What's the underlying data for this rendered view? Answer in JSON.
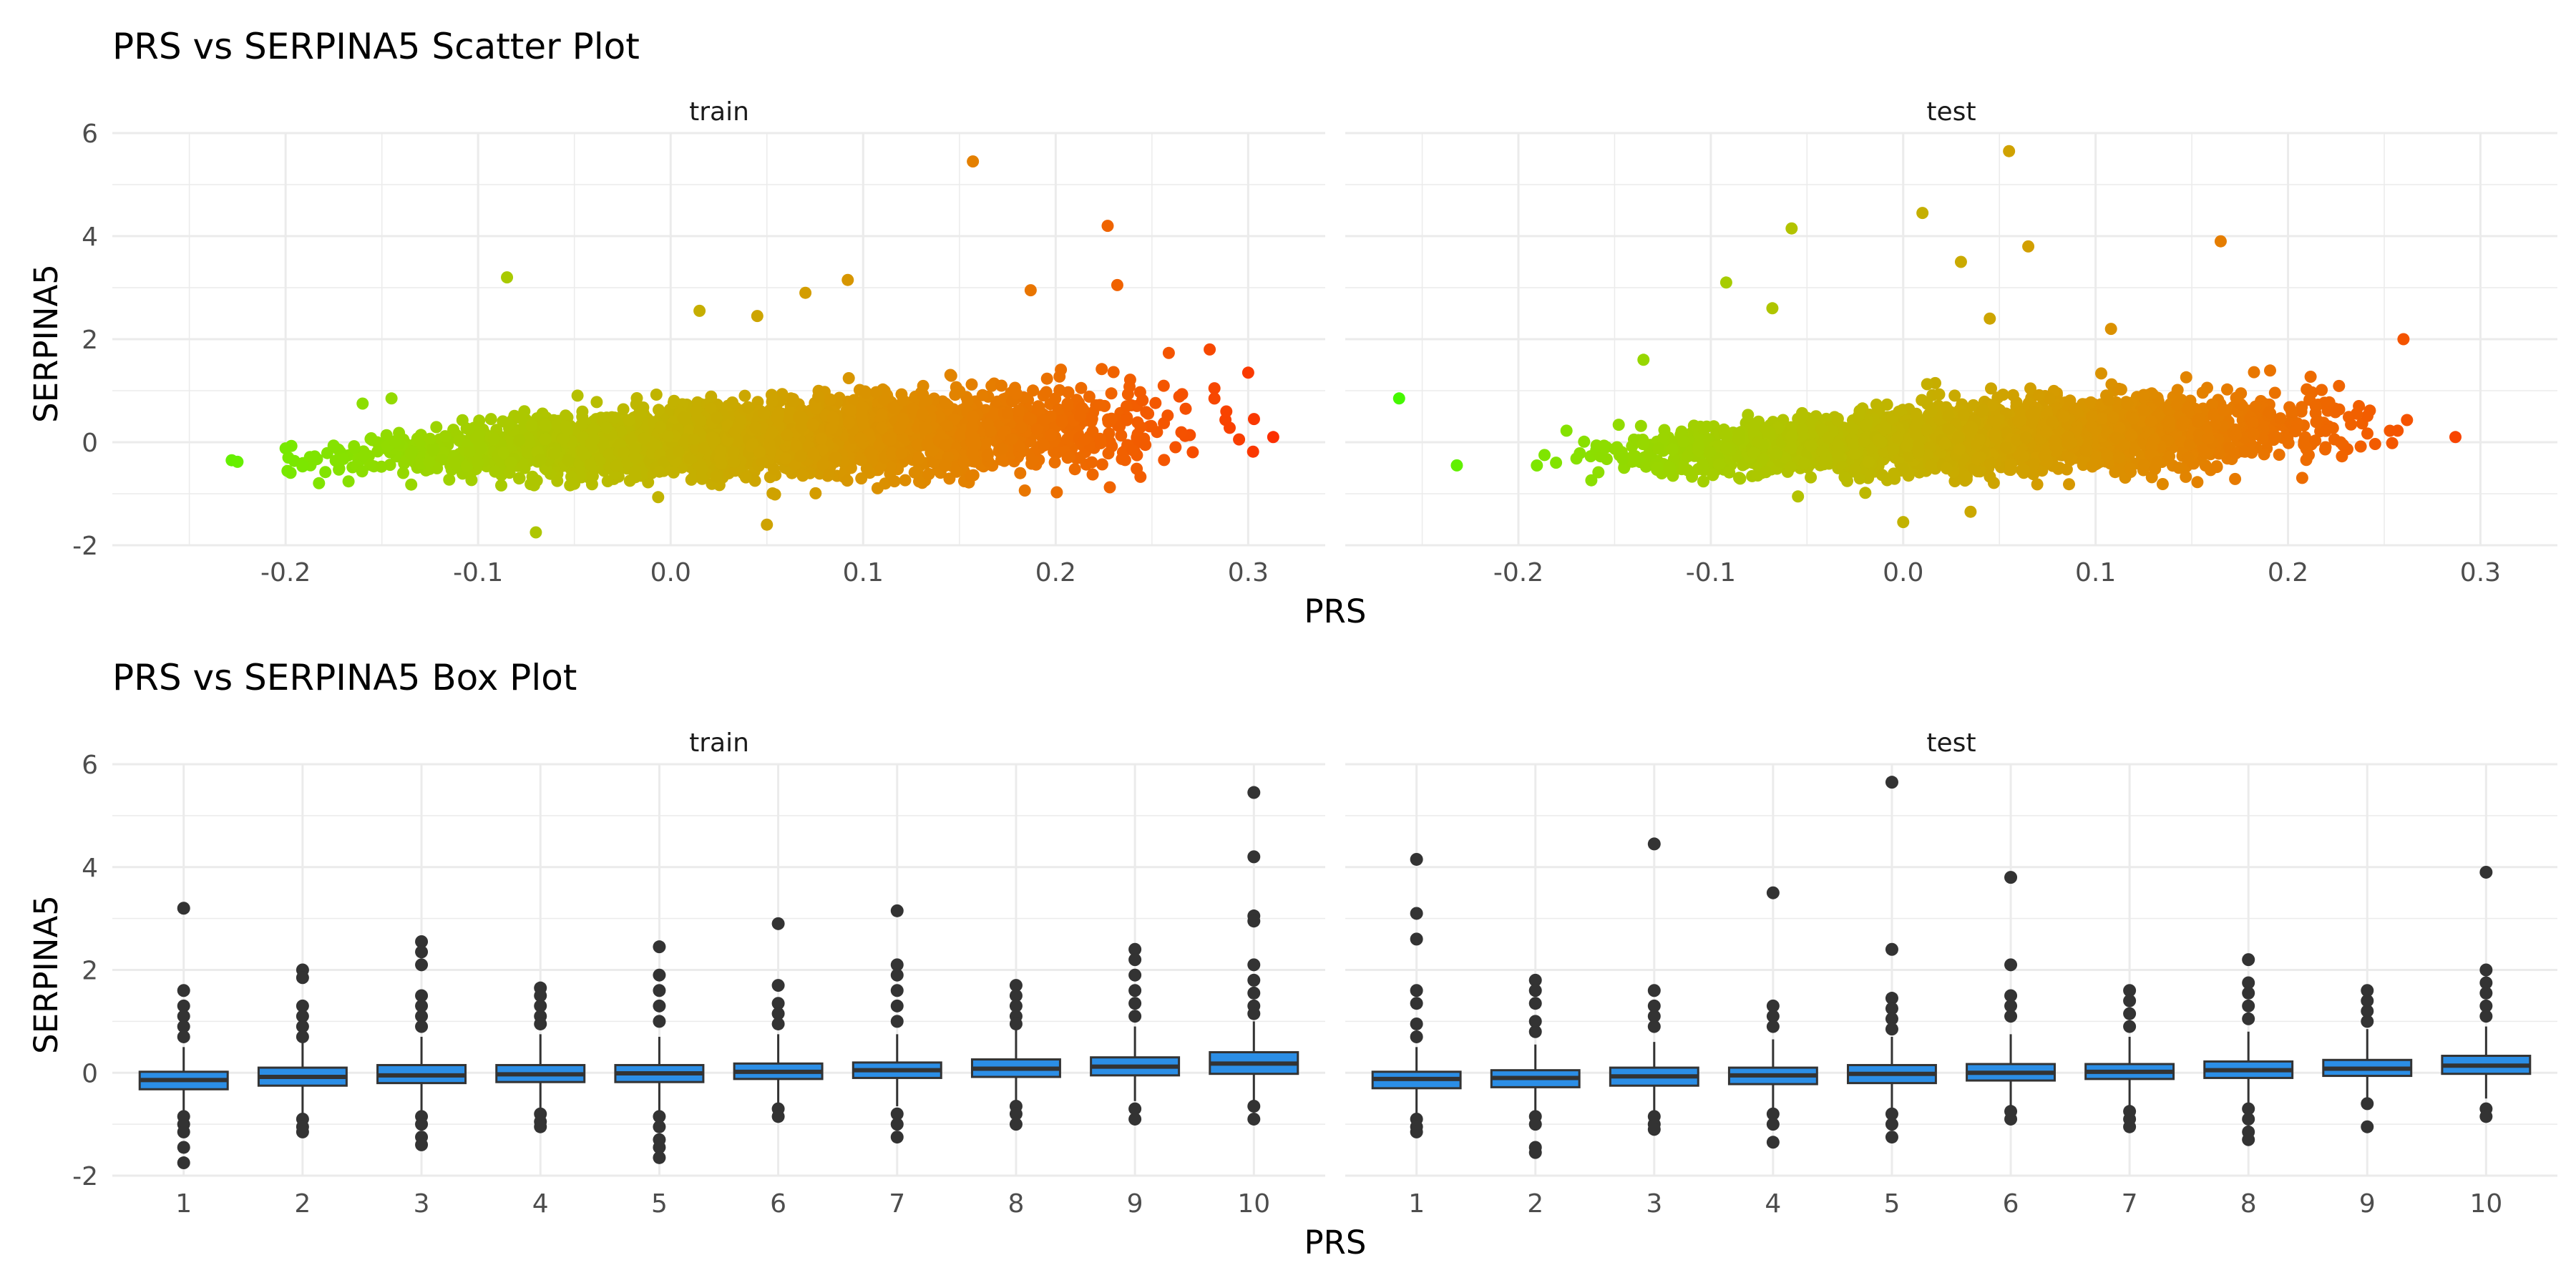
{
  "chart_data": [
    {
      "type": "scatter",
      "title": "PRS vs SERPINA5 Scatter Plot",
      "xlabel": "PRS",
      "ylabel": "SERPINA5",
      "xlim": [
        -0.29,
        0.34
      ],
      "ylim": [
        -2,
        6
      ],
      "x_ticks": [
        -0.2,
        -0.1,
        0.0,
        0.1,
        0.2,
        0.3
      ],
      "x_tick_labels": [
        "-0.2",
        "-0.1",
        "0.0",
        "0.1",
        "0.2",
        "0.3"
      ],
      "y_ticks": [
        -2,
        0,
        2,
        4,
        6
      ],
      "y_tick_labels": [
        "-2",
        "0",
        "2",
        "4",
        "6"
      ],
      "grid": true,
      "color_scale": [
        "#00ff00",
        "#ff0000"
      ],
      "facets": [
        {
          "label": "train",
          "outliers": [
            {
              "x": 0.157,
              "y": 5.45
            },
            {
              "x": 0.227,
              "y": 4.2
            },
            {
              "x": 0.232,
              "y": 3.05
            },
            {
              "x": -0.085,
              "y": 3.2
            },
            {
              "x": 0.092,
              "y": 3.15
            },
            {
              "x": 0.187,
              "y": 2.95
            },
            {
              "x": 0.07,
              "y": 2.9
            },
            {
              "x": 0.015,
              "y": 2.55
            },
            {
              "x": 0.045,
              "y": 2.45
            },
            {
              "x": -0.228,
              "y": -0.35
            },
            {
              "x": -0.225,
              "y": -0.38
            },
            {
              "x": -0.07,
              "y": -1.75
            },
            {
              "x": 0.05,
              "y": -1.6
            },
            {
              "x": 0.313,
              "y": 0.1
            },
            {
              "x": 0.3,
              "y": 1.35
            },
            {
              "x": 0.28,
              "y": 1.8
            },
            {
              "x": -0.145,
              "y": 0.85
            },
            {
              "x": -0.16,
              "y": 0.75
            },
            {
              "x": -0.2,
              "y": -0.12
            },
            {
              "x": 0.303,
              "y": 0.45
            }
          ]
        },
        {
          "label": "test",
          "outliers": [
            {
              "x": 0.055,
              "y": 5.65
            },
            {
              "x": 0.01,
              "y": 4.45
            },
            {
              "x": -0.058,
              "y": 4.15
            },
            {
              "x": 0.165,
              "y": 3.9
            },
            {
              "x": 0.065,
              "y": 3.8
            },
            {
              "x": 0.03,
              "y": 3.5
            },
            {
              "x": -0.092,
              "y": 3.1
            },
            {
              "x": -0.068,
              "y": 2.6
            },
            {
              "x": 0.045,
              "y": 2.4
            },
            {
              "x": -0.262,
              "y": 0.85
            },
            {
              "x": -0.232,
              "y": -0.45
            },
            {
              "x": 0.26,
              "y": 2.0
            },
            {
              "x": 0.287,
              "y": 0.1
            },
            {
              "x": -0.135,
              "y": 1.6
            },
            {
              "x": 0.108,
              "y": 2.2
            },
            {
              "x": 0.0,
              "y": -1.55
            },
            {
              "x": 0.035,
              "y": -1.35
            }
          ]
        }
      ]
    },
    {
      "type": "box",
      "title": "PRS vs SERPINA5 Box Plot",
      "xlabel": "PRS",
      "ylabel": "SERPINA5",
      "ylim": [
        -2,
        6
      ],
      "categories": [
        "1",
        "2",
        "3",
        "4",
        "5",
        "6",
        "7",
        "8",
        "9",
        "10"
      ],
      "y_ticks": [
        -2,
        0,
        2,
        4,
        6
      ],
      "y_tick_labels": [
        "-2",
        "0",
        "2",
        "4",
        "6"
      ],
      "grid": true,
      "box_color": "#2b8ee6",
      "facets": [
        {
          "label": "train",
          "boxes": [
            {
              "q1": -0.32,
              "median": -0.14,
              "q3": 0.02,
              "whisker_low": -0.75,
              "whisker_high": 0.5,
              "outliers": [
                3.2,
                1.6,
                1.3,
                1.1,
                0.9,
                0.7,
                -0.85,
                -1.0,
                -1.15,
                -1.45,
                -1.75
              ]
            },
            {
              "q1": -0.25,
              "median": -0.08,
              "q3": 0.1,
              "whisker_low": -0.8,
              "whisker_high": 0.6,
              "outliers": [
                2.0,
                1.85,
                1.3,
                1.1,
                0.9,
                0.7,
                -0.9,
                -1.05,
                -1.15
              ]
            },
            {
              "q1": -0.2,
              "median": -0.05,
              "q3": 0.15,
              "whisker_low": -0.75,
              "whisker_high": 0.7,
              "outliers": [
                2.55,
                2.35,
                2.1,
                1.5,
                1.3,
                1.1,
                0.9,
                -0.85,
                -1.0,
                -1.25,
                -1.4
              ]
            },
            {
              "q1": -0.18,
              "median": -0.03,
              "q3": 0.15,
              "whisker_low": -0.7,
              "whisker_high": 0.75,
              "outliers": [
                1.65,
                1.5,
                1.3,
                1.1,
                0.95,
                -0.8,
                -0.95,
                -1.05
              ]
            },
            {
              "q1": -0.18,
              "median": -0.01,
              "q3": 0.15,
              "whisker_low": -0.75,
              "whisker_high": 0.7,
              "outliers": [
                2.45,
                1.9,
                1.6,
                1.3,
                1.0,
                -0.85,
                -1.05,
                -1.3,
                -1.45,
                -1.65
              ]
            },
            {
              "q1": -0.12,
              "median": 0.02,
              "q3": 0.18,
              "whisker_low": -0.65,
              "whisker_high": 0.75,
              "outliers": [
                2.9,
                1.7,
                1.35,
                1.15,
                0.95,
                -0.7,
                -0.85
              ]
            },
            {
              "q1": -0.1,
              "median": 0.05,
              "q3": 0.2,
              "whisker_low": -0.65,
              "whisker_high": 0.75,
              "outliers": [
                3.15,
                2.1,
                1.9,
                1.6,
                1.3,
                1.0,
                -0.8,
                -1.0,
                -1.25
              ]
            },
            {
              "q1": -0.08,
              "median": 0.08,
              "q3": 0.26,
              "whisker_low": -0.6,
              "whisker_high": 0.85,
              "outliers": [
                1.7,
                1.5,
                1.3,
                1.1,
                0.95,
                -0.65,
                -0.8,
                -1.0
              ]
            },
            {
              "q1": -0.05,
              "median": 0.12,
              "q3": 0.3,
              "whisker_low": -0.55,
              "whisker_high": 0.9,
              "outliers": [
                2.4,
                2.2,
                1.9,
                1.6,
                1.35,
                1.1,
                -0.7,
                -0.9
              ]
            },
            {
              "q1": -0.02,
              "median": 0.18,
              "q3": 0.4,
              "whisker_low": -0.6,
              "whisker_high": 1.0,
              "outliers": [
                5.45,
                4.2,
                3.05,
                2.95,
                2.1,
                1.8,
                1.55,
                1.3,
                1.15,
                -0.65,
                -0.9
              ]
            }
          ]
        },
        {
          "label": "test",
          "boxes": [
            {
              "q1": -0.3,
              "median": -0.12,
              "q3": 0.02,
              "whisker_low": -0.8,
              "whisker_high": 0.5,
              "outliers": [
                4.15,
                3.1,
                2.6,
                1.6,
                1.35,
                0.95,
                0.7,
                -0.9,
                -1.05,
                -1.15
              ]
            },
            {
              "q1": -0.28,
              "median": -0.1,
              "q3": 0.05,
              "whisker_low": -0.8,
              "whisker_high": 0.55,
              "outliers": [
                1.8,
                1.6,
                1.35,
                1.0,
                0.8,
                -0.85,
                -1.0,
                -1.45,
                -1.55
              ]
            },
            {
              "q1": -0.25,
              "median": -0.07,
              "q3": 0.1,
              "whisker_low": -0.75,
              "whisker_high": 0.6,
              "outliers": [
                4.45,
                1.6,
                1.3,
                1.1,
                0.9,
                -0.85,
                -1.0,
                -1.1
              ]
            },
            {
              "q1": -0.22,
              "median": -0.05,
              "q3": 0.1,
              "whisker_low": -0.7,
              "whisker_high": 0.65,
              "outliers": [
                3.5,
                1.3,
                1.1,
                0.9,
                -0.8,
                -1.0,
                -1.35
              ]
            },
            {
              "q1": -0.2,
              "median": -0.02,
              "q3": 0.15,
              "whisker_low": -0.7,
              "whisker_high": 0.7,
              "outliers": [
                5.65,
                2.4,
                1.45,
                1.25,
                1.05,
                0.85,
                -0.8,
                -1.0,
                -1.25
              ]
            },
            {
              "q1": -0.15,
              "median": 0.0,
              "q3": 0.17,
              "whisker_low": -0.65,
              "whisker_high": 0.75,
              "outliers": [
                3.8,
                2.1,
                1.5,
                1.3,
                1.1,
                -0.75,
                -0.9
              ]
            },
            {
              "q1": -0.12,
              "median": 0.02,
              "q3": 0.17,
              "whisker_low": -0.65,
              "whisker_high": 0.7,
              "outliers": [
                1.6,
                1.4,
                1.15,
                0.9,
                -0.75,
                -0.9,
                -1.05
              ]
            },
            {
              "q1": -0.1,
              "median": 0.05,
              "q3": 0.22,
              "whisker_low": -0.6,
              "whisker_high": 0.8,
              "outliers": [
                2.2,
                1.75,
                1.55,
                1.3,
                1.05,
                -0.7,
                -0.9,
                -1.15,
                -1.3
              ]
            },
            {
              "q1": -0.06,
              "median": 0.08,
              "q3": 0.25,
              "whisker_low": -0.55,
              "whisker_high": 0.85,
              "outliers": [
                1.6,
                1.4,
                1.2,
                1.0,
                -0.6,
                -1.05
              ]
            },
            {
              "q1": -0.02,
              "median": 0.14,
              "q3": 0.33,
              "whisker_low": -0.5,
              "whisker_high": 0.9,
              "outliers": [
                3.9,
                2.0,
                1.75,
                1.55,
                1.3,
                1.1,
                -0.7,
                -0.85
              ]
            }
          ]
        }
      ]
    }
  ]
}
